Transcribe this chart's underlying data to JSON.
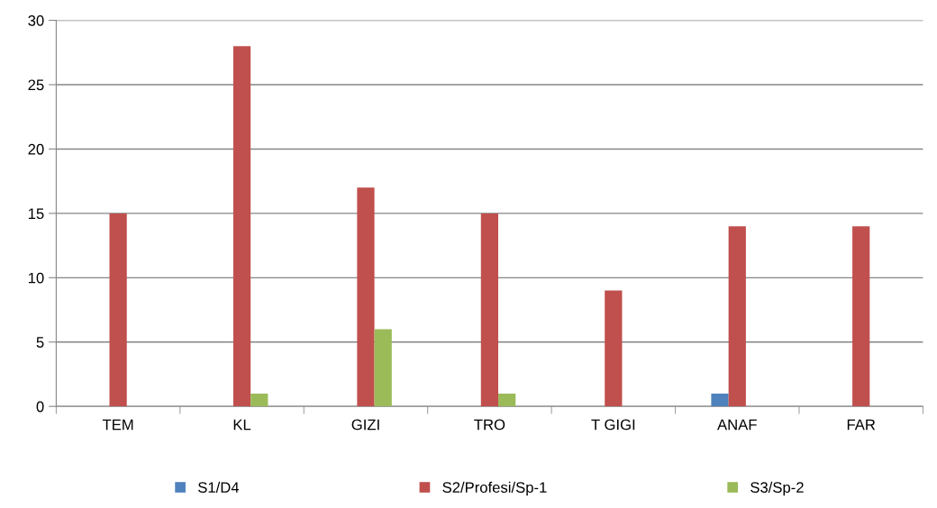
{
  "chart_data": {
    "type": "bar",
    "categories": [
      "TEM",
      "KL",
      "GIZI",
      "TRO",
      "T GIGI",
      "ANAF",
      "FAR"
    ],
    "series": [
      {
        "name": "S1/D4",
        "color": "#4f81bd",
        "values": [
          0,
          0,
          0,
          0,
          0,
          1,
          0
        ]
      },
      {
        "name": "S2/Profesi/Sp-1",
        "color": "#c0504d",
        "values": [
          15,
          28,
          17,
          15,
          9,
          14,
          14
        ]
      },
      {
        "name": "S3/Sp-2",
        "color": "#9bbb59",
        "values": [
          0,
          1,
          6,
          1,
          0,
          0,
          0
        ]
      }
    ],
    "ylim": [
      0,
      30
    ],
    "yticks": [
      0,
      5,
      10,
      15,
      20,
      25,
      30
    ],
    "grid": "y",
    "legend": "bottom"
  }
}
